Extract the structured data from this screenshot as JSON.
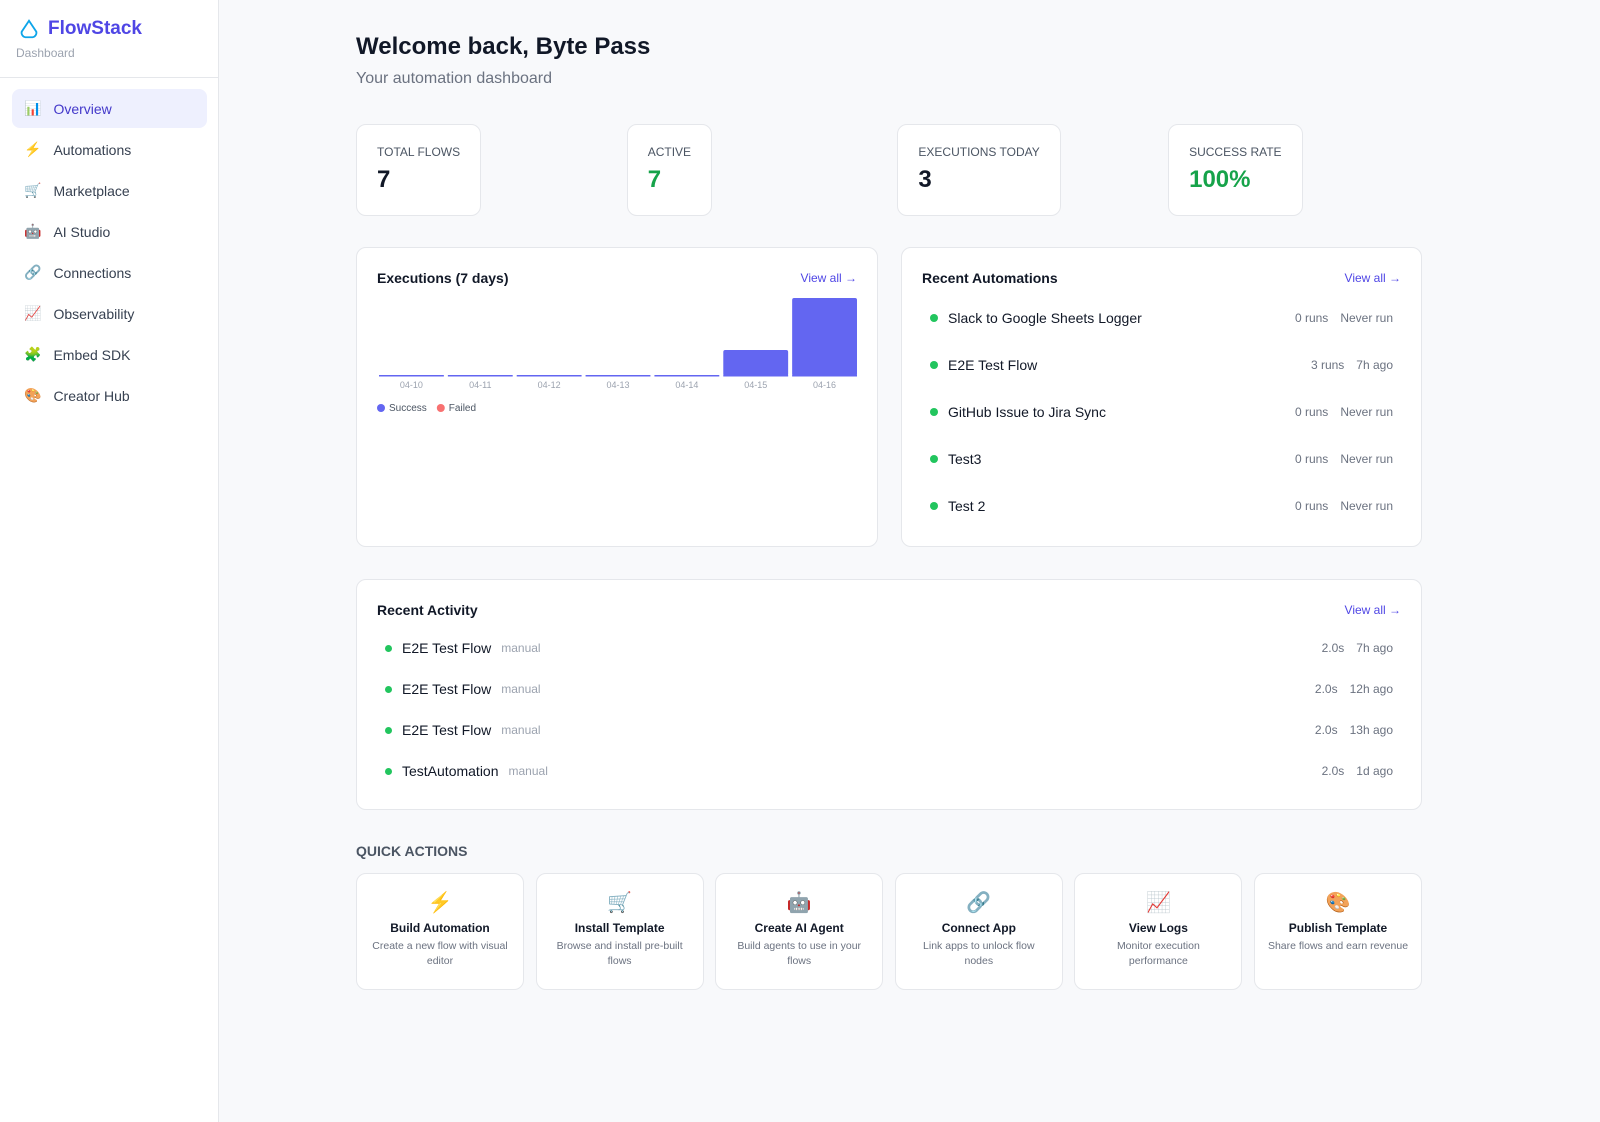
{
  "sidebar": {
    "brand": "FlowStack",
    "subtitle": "Dashboard",
    "nav": [
      {
        "icon": "📊",
        "label": "Overview"
      },
      {
        "icon": "⚡",
        "label": "Automations"
      },
      {
        "icon": "🛒",
        "label": "Marketplace"
      },
      {
        "icon": "🤖",
        "label": "AI Studio"
      },
      {
        "icon": "🔗",
        "label": "Connections"
      },
      {
        "icon": "📈",
        "label": "Observability"
      },
      {
        "icon": "🧩",
        "label": "Embed SDK"
      },
      {
        "icon": "🎨",
        "label": "Creator Hub"
      }
    ]
  },
  "header": {
    "title": "Welcome back, Byte Pass",
    "subtitle": "Your automation dashboard"
  },
  "stats": [
    {
      "label": "TOTAL FLOWS",
      "value": 7
    },
    {
      "label": "ACTIVE",
      "value": 7
    },
    {
      "label": "EXECUTIONS TODAY",
      "value": 3
    },
    {
      "label": "SUCCESS RATE",
      "value": "100%"
    }
  ],
  "executions": {
    "type": "bar",
    "title": "Executions (7 days)",
    "link": "View all →",
    "categories": [
      "04-10",
      "04-11",
      "04-12",
      "04-13",
      "04-14",
      "04-15",
      "04-16"
    ],
    "series": [
      {
        "name": "Success",
        "color": "#6366f1",
        "values": [
          0,
          0,
          0,
          0,
          0,
          1,
          3
        ]
      },
      {
        "name": "Failed",
        "color": "#f87171",
        "values": [
          0,
          0,
          0,
          0,
          0,
          0,
          0
        ]
      }
    ]
  },
  "recent_automations": {
    "title": "Recent Automations",
    "link": "View all →",
    "items": [
      {
        "name": "Slack to Google Sheets Logger",
        "runs": "0 runs",
        "last": "Never run"
      },
      {
        "name": "E2E Test Flow",
        "runs": "3 runs",
        "last": "7h ago"
      },
      {
        "name": "GitHub Issue to Jira Sync",
        "runs": "0 runs",
        "last": "Never run"
      },
      {
        "name": "Test3",
        "runs": "0 runs",
        "last": "Never run"
      },
      {
        "name": "Test 2",
        "runs": "0 runs",
        "last": "Never run"
      }
    ]
  },
  "recent_activity": {
    "title": "Recent Activity",
    "link": "View all →",
    "items": [
      {
        "name": "E2E Test Flow",
        "trigger": "manual",
        "duration": "2.0s",
        "ago": "7h ago"
      },
      {
        "name": "E2E Test Flow",
        "trigger": "manual",
        "duration": "2.0s",
        "ago": "12h ago"
      },
      {
        "name": "E2E Test Flow",
        "trigger": "manual",
        "duration": "2.0s",
        "ago": "13h ago"
      },
      {
        "name": "TestAutomation",
        "trigger": "manual",
        "duration": "2.0s",
        "ago": "1d ago"
      }
    ]
  },
  "quick_actions": {
    "title": "QUICK ACTIONS",
    "items": [
      {
        "icon": "⚡",
        "title": "Build Automation",
        "description": "Create a new flow with visual editor"
      },
      {
        "icon": "🛒",
        "title": "Install Template",
        "description": "Browse and install pre-built flows"
      },
      {
        "icon": "🤖",
        "title": "Create AI Agent",
        "description": "Build agents to use in your flows"
      },
      {
        "icon": "🔗",
        "title": "Connect App",
        "description": "Link apps to unlock flow nodes"
      },
      {
        "icon": "📈",
        "title": "View Logs",
        "description": "Monitor execution performance"
      },
      {
        "icon": "🎨",
        "title": "Publish Template",
        "description": "Share flows and earn revenue"
      }
    ]
  }
}
